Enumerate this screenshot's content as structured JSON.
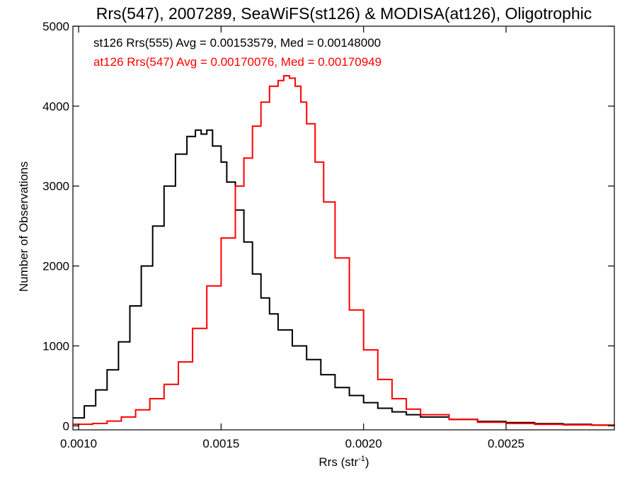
{
  "chart_data": {
    "type": "line",
    "title": "Rrs(547), 2007289, SeaWiFS(st126) & MODISA(at126), Oligotrophic",
    "xlabel_main": "Rrs (str",
    "xlabel_sup": "-1",
    "xlabel_close": ")",
    "ylabel": "Number of Observations",
    "xlim": [
      0.00098,
      0.00288
    ],
    "ylim": [
      -50,
      5000
    ],
    "x_ticks": [
      {
        "value": 0.001,
        "label": "0.0010"
      },
      {
        "value": 0.0015,
        "label": "0.0015"
      },
      {
        "value": 0.002,
        "label": "0.0020"
      },
      {
        "value": 0.0025,
        "label": "0.0025"
      }
    ],
    "y_ticks": [
      {
        "value": 0,
        "label": "0"
      },
      {
        "value": 1000,
        "label": "1000"
      },
      {
        "value": 2000,
        "label": "2000"
      },
      {
        "value": 3000,
        "label": "3000"
      },
      {
        "value": 4000,
        "label": "4000"
      },
      {
        "value": 5000,
        "label": "5000"
      }
    ],
    "grid": false,
    "legend_position": "top-left",
    "series": [
      {
        "label": "st126 Rrs(555) Avg = 0.00153579, Med = 0.00148000",
        "color": "#000000",
        "x": [
          0.00098,
          0.00102,
          0.00106,
          0.0011,
          0.00114,
          0.00118,
          0.00122,
          0.00126,
          0.0013,
          0.00134,
          0.00138,
          0.00141,
          0.00143,
          0.00145,
          0.00147,
          0.0015,
          0.00152,
          0.00155,
          0.00158,
          0.00161,
          0.00164,
          0.00167,
          0.0017,
          0.00175,
          0.0018,
          0.00185,
          0.0019,
          0.00195,
          0.002,
          0.00205,
          0.0021,
          0.00215,
          0.0022,
          0.0023,
          0.0024,
          0.0025,
          0.0026,
          0.0027,
          0.0028,
          0.00288
        ],
        "y": [
          100,
          250,
          450,
          700,
          1050,
          1500,
          2000,
          2500,
          3000,
          3400,
          3620,
          3700,
          3650,
          3700,
          3500,
          3300,
          3050,
          2700,
          2300,
          1900,
          1600,
          1400,
          1200,
          1000,
          830,
          640,
          480,
          380,
          290,
          220,
          175,
          140,
          110,
          80,
          55,
          40,
          28,
          18,
          10,
          5
        ]
      },
      {
        "label": "at126 Rrs(547) Avg = 0.00170076, Med = 0.00170949",
        "color": "#ff0000",
        "x": [
          0.00098,
          0.00105,
          0.0011,
          0.00115,
          0.0012,
          0.00125,
          0.0013,
          0.00135,
          0.0014,
          0.00145,
          0.0015,
          0.00155,
          0.00158,
          0.00161,
          0.00164,
          0.00167,
          0.0017,
          0.00172,
          0.00174,
          0.00176,
          0.00178,
          0.0018,
          0.00183,
          0.00186,
          0.0019,
          0.00195,
          0.002,
          0.00205,
          0.0021,
          0.00215,
          0.0022,
          0.0023,
          0.0024,
          0.0025,
          0.0026,
          0.0027,
          0.0028,
          0.00288
        ],
        "y": [
          20,
          30,
          60,
          110,
          200,
          340,
          520,
          800,
          1220,
          1750,
          2350,
          3000,
          3350,
          3750,
          4050,
          4250,
          4320,
          4380,
          4350,
          4250,
          4050,
          3780,
          3300,
          2800,
          2100,
          1450,
          950,
          580,
          340,
          210,
          140,
          80,
          45,
          30,
          18,
          12,
          8,
          5
        ]
      }
    ]
  }
}
